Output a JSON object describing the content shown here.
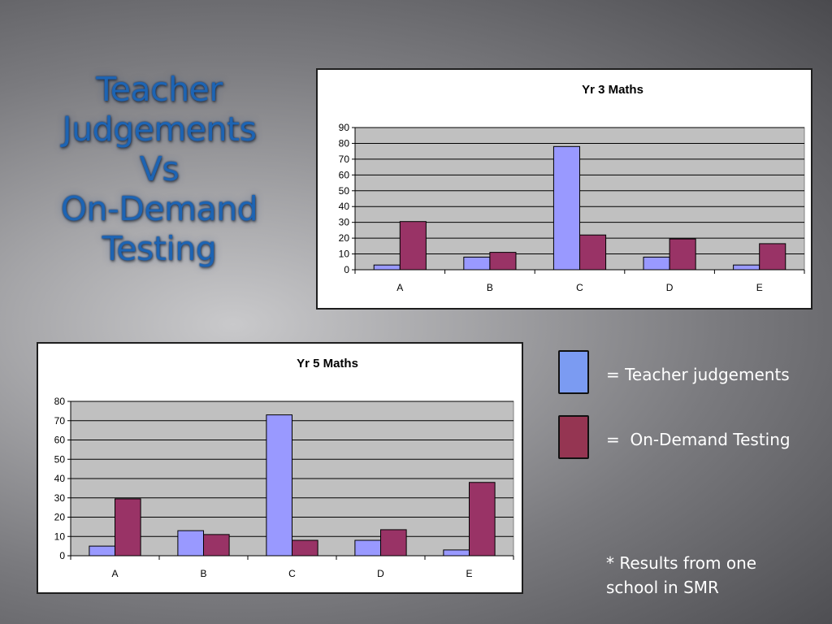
{
  "slide": {
    "title_lines": [
      "Teacher",
      "Judgements",
      "Vs",
      "On-Demand",
      "Testing"
    ],
    "note_line1": "* Results from one",
    "note_line2": "school in SMR"
  },
  "legend": [
    {
      "label": "= Teacher judgements",
      "color": "#7b9bf2"
    },
    {
      "label": "=  On-Demand Testing",
      "color": "#953552"
    }
  ],
  "chart_data": [
    {
      "type": "bar",
      "title": "Yr 3 Maths",
      "categories": [
        "A",
        "B",
        "C",
        "D",
        "E"
      ],
      "series": [
        {
          "values": [
            3,
            8,
            78,
            8,
            3
          ],
          "color": "#9999ff"
        },
        {
          "values": [
            30.5,
            11,
            22,
            19.5,
            16.5
          ],
          "color": "#993366"
        }
      ],
      "ylim": [
        0,
        90
      ],
      "yticks": [
        "0",
        "10",
        "20",
        "30",
        "40",
        "50",
        "60",
        "70",
        "80",
        "90"
      ],
      "grid": true,
      "plot_background": "#c0c0c0"
    },
    {
      "type": "bar",
      "title": "Yr 5 Maths",
      "categories": [
        "A",
        "B",
        "C",
        "D",
        "E"
      ],
      "series": [
        {
          "values": [
            5,
            13,
            73,
            8,
            3
          ],
          "color": "#9999ff"
        },
        {
          "values": [
            29.5,
            11,
            8,
            13.5,
            38
          ],
          "color": "#993366"
        }
      ],
      "ylim": [
        0,
        80
      ],
      "yticks": [
        "0",
        "10",
        "20",
        "30",
        "40",
        "50",
        "60",
        "70",
        "80"
      ],
      "grid": true,
      "plot_background": "#c0c0c0"
    }
  ]
}
